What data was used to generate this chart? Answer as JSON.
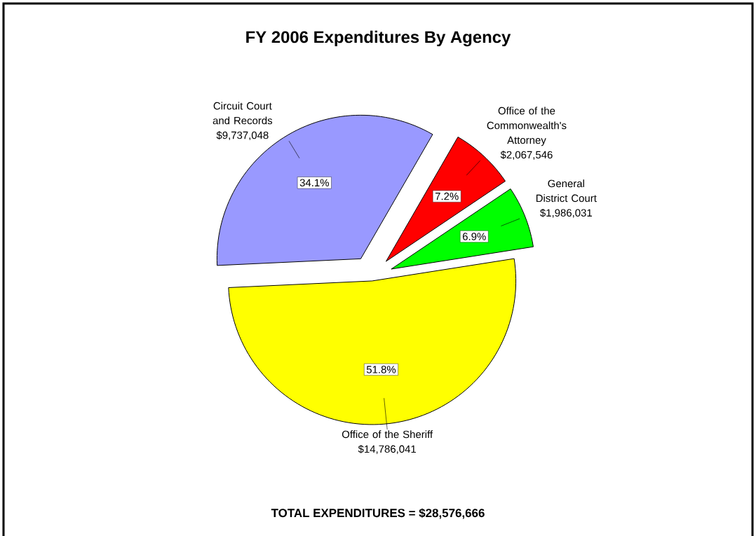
{
  "chart_data": {
    "type": "pie",
    "title": "FY 2006 Expenditures By Agency",
    "categories": [
      "Office of the Commonwealth's Attorney",
      "General District Court",
      "Office of the Sheriff",
      "Circuit Court and Records"
    ],
    "values": [
      2067546,
      1986031,
      14786041,
      9737048
    ],
    "value_labels": [
      "$2,067,546",
      "$1,986,031",
      "$14,786,041",
      "$9,737,048"
    ],
    "colors": [
      "#ff0000",
      "#00ff00",
      "#ffff00",
      "#9999ff"
    ],
    "annotations": [
      "7.2%",
      "6.9%",
      "51.8%",
      "34.1%",
      "TOTAL EXPENDITURES = $28,576,666"
    ],
    "legend": false
  }
}
